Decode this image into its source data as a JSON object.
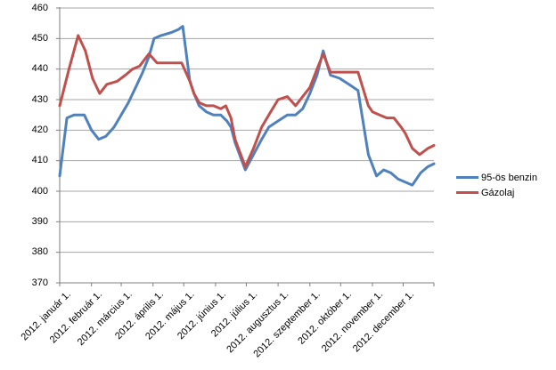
{
  "chart_data": {
    "type": "line",
    "title": "",
    "grid": true,
    "legend_position": "right",
    "x_axis": {
      "label": "",
      "tick_labels": [
        "2012. január 1.",
        "2012. február 1.",
        "2012. március 1.",
        "2012. április 1.",
        "2012. május 1.",
        "2012. június 1.",
        "2012. július 1.",
        "2012. augusztus 1.",
        "2012. szeptember 1.",
        "2012. október 1.",
        "2012. november 1.",
        "2012. december 1."
      ],
      "tick_days": [
        1,
        32,
        61,
        92,
        122,
        153,
        183,
        214,
        245,
        275,
        306,
        336
      ],
      "domain_days": [
        1,
        366
      ]
    },
    "y_axis": {
      "label": "",
      "min": 370,
      "max": 460,
      "step": 10,
      "tick_labels": [
        "370",
        "380",
        "390",
        "400",
        "410",
        "420",
        "430",
        "440",
        "450",
        "460"
      ]
    },
    "series": [
      {
        "name": "95-ös benzin",
        "color": "#4F81BD",
        "points": [
          [
            1,
            405
          ],
          [
            8,
            424
          ],
          [
            15,
            425
          ],
          [
            25,
            425
          ],
          [
            32,
            420
          ],
          [
            39,
            417
          ],
          [
            46,
            418
          ],
          [
            54,
            421
          ],
          [
            61,
            425
          ],
          [
            68,
            429
          ],
          [
            75,
            434
          ],
          [
            82,
            439
          ],
          [
            88,
            444
          ],
          [
            93,
            450
          ],
          [
            100,
            451
          ],
          [
            110,
            452
          ],
          [
            117,
            453
          ],
          [
            121,
            454
          ],
          [
            128,
            436
          ],
          [
            132,
            432
          ],
          [
            137,
            428
          ],
          [
            144,
            426
          ],
          [
            151,
            425
          ],
          [
            158,
            425
          ],
          [
            164,
            423
          ],
          [
            168,
            421
          ],
          [
            172,
            416
          ],
          [
            182,
            407
          ],
          [
            190,
            412
          ],
          [
            198,
            417
          ],
          [
            205,
            421
          ],
          [
            214,
            423
          ],
          [
            223,
            425
          ],
          [
            231,
            425
          ],
          [
            238,
            427
          ],
          [
            245,
            432
          ],
          [
            252,
            438
          ],
          [
            258,
            446
          ],
          [
            265,
            438
          ],
          [
            274,
            437
          ],
          [
            283,
            435
          ],
          [
            292,
            433
          ],
          [
            302,
            412
          ],
          [
            310,
            405
          ],
          [
            317,
            407
          ],
          [
            324,
            406
          ],
          [
            331,
            404
          ],
          [
            338,
            403
          ],
          [
            345,
            402
          ],
          [
            353,
            406
          ],
          [
            360,
            408
          ],
          [
            366,
            409
          ]
        ]
      },
      {
        "name": "Gázolaj",
        "color": "#C0504D",
        "points": [
          [
            1,
            428
          ],
          [
            10,
            440
          ],
          [
            19,
            451
          ],
          [
            26,
            446
          ],
          [
            33,
            437
          ],
          [
            40,
            432
          ],
          [
            47,
            435
          ],
          [
            57,
            436
          ],
          [
            65,
            438
          ],
          [
            72,
            440
          ],
          [
            79,
            441
          ],
          [
            88,
            445
          ],
          [
            96,
            442
          ],
          [
            105,
            442
          ],
          [
            113,
            442
          ],
          [
            120,
            442
          ],
          [
            128,
            436
          ],
          [
            132,
            432
          ],
          [
            137,
            429
          ],
          [
            144,
            428
          ],
          [
            151,
            428
          ],
          [
            158,
            427
          ],
          [
            163,
            428
          ],
          [
            168,
            424
          ],
          [
            172,
            417
          ],
          [
            182,
            408
          ],
          [
            190,
            414
          ],
          [
            198,
            421
          ],
          [
            205,
            425
          ],
          [
            214,
            430
          ],
          [
            223,
            431
          ],
          [
            231,
            428
          ],
          [
            238,
            431
          ],
          [
            245,
            434
          ],
          [
            252,
            440
          ],
          [
            258,
            445
          ],
          [
            265,
            439
          ],
          [
            274,
            439
          ],
          [
            283,
            439
          ],
          [
            292,
            439
          ],
          [
            302,
            428
          ],
          [
            306,
            426
          ],
          [
            313,
            425
          ],
          [
            320,
            424
          ],
          [
            327,
            424
          ],
          [
            334,
            421
          ],
          [
            338,
            419
          ],
          [
            345,
            414
          ],
          [
            352,
            412
          ],
          [
            360,
            414
          ],
          [
            366,
            415
          ]
        ]
      }
    ],
    "style": {
      "gridline_color": "#A6A6A6",
      "axis_color": "#7F7F7F",
      "text_color": "#000000",
      "background": "#FFFFFF",
      "line_width": 3
    }
  }
}
